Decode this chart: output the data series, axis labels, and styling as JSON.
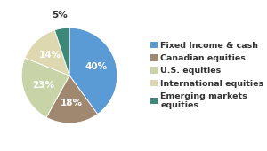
{
  "labels": [
    "Fixed Income & cash",
    "Canadian equities",
    "U.S. equities",
    "International equities",
    "Emerging markets\nequities"
  ],
  "values": [
    40,
    18,
    23,
    14,
    5
  ],
  "pct_labels": [
    "40%",
    "18%",
    "23%",
    "14%",
    "5%"
  ],
  "colors": [
    "#5b9bd5",
    "#a08870",
    "#c8d4a8",
    "#ddd8b0",
    "#3d8878"
  ],
  "legend_labels": [
    "Fixed Income & cash",
    "Canadian equities",
    "U.S. equities",
    "International equities",
    "Emerging markets\nequities"
  ],
  "background_color": "#ffffff",
  "startangle": 90,
  "pct_fontsize": 7.5,
  "legend_fontsize": 6.8,
  "outside_label_idx": 4
}
